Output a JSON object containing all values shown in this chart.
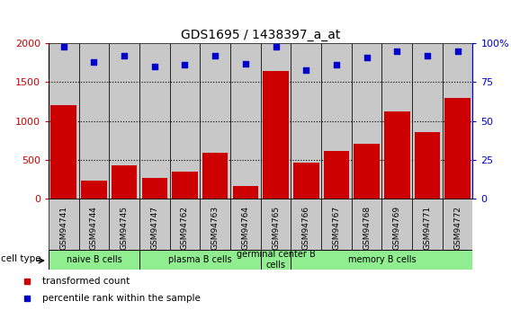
{
  "title": "GDS1695 / 1438397_a_at",
  "samples": [
    "GSM94741",
    "GSM94744",
    "GSM94745",
    "GSM94747",
    "GSM94762",
    "GSM94763",
    "GSM94764",
    "GSM94765",
    "GSM94766",
    "GSM94767",
    "GSM94768",
    "GSM94769",
    "GSM94771",
    "GSM94772"
  ],
  "transformed_count": [
    1200,
    230,
    430,
    270,
    340,
    590,
    155,
    1640,
    460,
    610,
    710,
    1120,
    860,
    1300
  ],
  "percentile_rank": [
    98,
    88,
    92,
    85,
    86,
    92,
    87,
    98,
    83,
    86,
    91,
    95,
    92,
    95
  ],
  "bar_color": "#cc0000",
  "dot_color": "#0000cc",
  "ylim_left": [
    0,
    2000
  ],
  "ylim_right": [
    0,
    100
  ],
  "yticks_left": [
    0,
    500,
    1000,
    1500,
    2000
  ],
  "ytick_labels_right": [
    "0",
    "25",
    "50",
    "75",
    "100%"
  ],
  "yticks_right": [
    0,
    25,
    50,
    75,
    100
  ],
  "cell_type_groups": [
    {
      "label": "naive B cells",
      "start": 0,
      "end": 2,
      "color": "#90ee90"
    },
    {
      "label": "plasma B cells",
      "start": 3,
      "end": 6,
      "color": "#90ee90"
    },
    {
      "label": "germinal center B\ncells",
      "start": 7,
      "end": 7,
      "color": "#90ee90"
    },
    {
      "label": "memory B cells",
      "start": 8,
      "end": 13,
      "color": "#90ee90"
    }
  ],
  "sample_bg_color": "#c8c8c8",
  "legend_items": [
    {
      "label": "transformed count",
      "color": "#cc0000"
    },
    {
      "label": "percentile rank within the sample",
      "color": "#0000cc"
    }
  ]
}
